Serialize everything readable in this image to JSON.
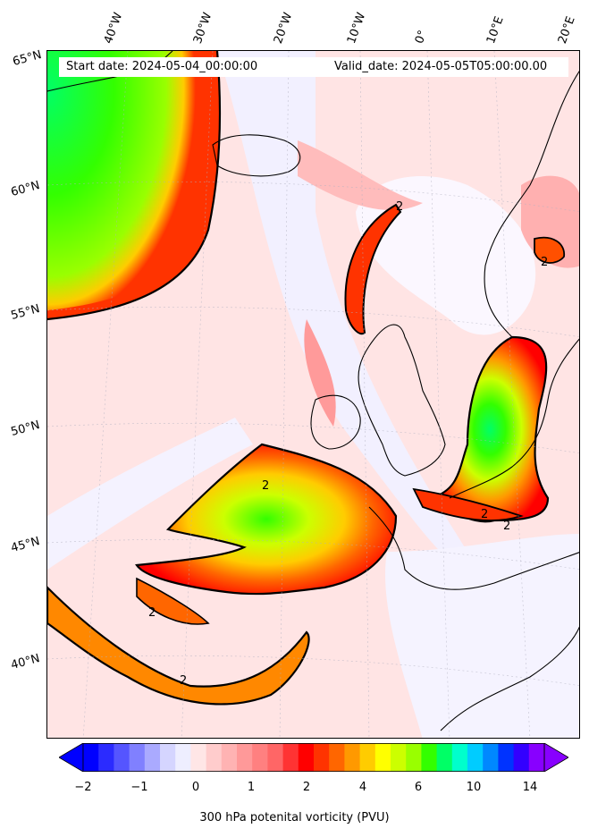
{
  "header": {
    "start_date": "Start date: 2024-05-04_00:00:00",
    "valid_date": "Valid_date: 2024-05-05T05:00:00.00"
  },
  "axes": {
    "lon_labels": [
      "40°W",
      "30°W",
      "20°W",
      "10°W",
      "0°",
      "10°E",
      "20°E"
    ],
    "lat_labels": [
      "65°N",
      "60°N",
      "55°N",
      "50°N",
      "45°N",
      "40°N"
    ]
  },
  "contour_labels": [
    "2",
    "2",
    "2",
    "2",
    "2",
    "2",
    "2"
  ],
  "colorbar": {
    "title": "300 hPa potenital vorticity (PVU)",
    "ticks": [
      "−2",
      "−1",
      "0",
      "1",
      "2",
      "4",
      "6",
      "10",
      "14"
    ],
    "colors": [
      "#0000ff",
      "#2b2bff",
      "#5555ff",
      "#8080ff",
      "#aaaaff",
      "#d5d5ff",
      "#eeeeff",
      "#ffe6e6",
      "#ffcccc",
      "#ffb3b3",
      "#ff9999",
      "#ff8080",
      "#ff6666",
      "#ff3333",
      "#ff0000",
      "#ff3300",
      "#ff6600",
      "#ff9900",
      "#ffcc00",
      "#ffff00",
      "#ccff00",
      "#99ff00",
      "#33ff00",
      "#00ff66",
      "#00ffcc",
      "#00ccff",
      "#0088ff",
      "#0033ff",
      "#3300ff",
      "#8800ff"
    ]
  },
  "map_colors": {
    "background": "#ffe0e0",
    "land_outline": "#000000",
    "contour": "#000000"
  }
}
